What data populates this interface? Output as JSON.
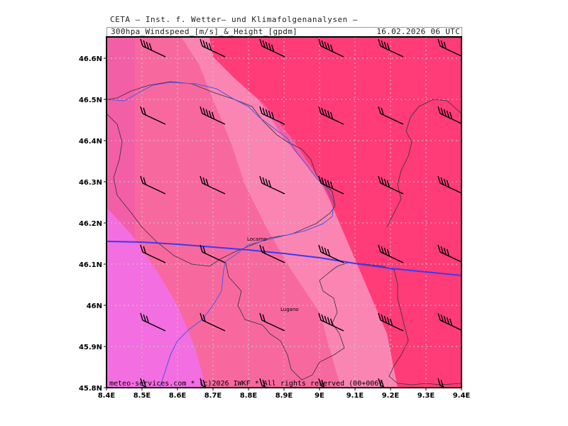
{
  "header": {
    "title": "CETA — Inst. f. Wetter— und Klimafolgenanalysen —",
    "subtitle": "300hpa_Windspeed_[m/s]_&_Height_[gpdm]",
    "datetime": "16.02.2026 06 UTC"
  },
  "axes": {
    "x_ticks": [
      "8.4E",
      "8.5E",
      "8.6E",
      "8.7E",
      "8.8E",
      "8.9E",
      "9E",
      "9.1E",
      "9.2E",
      "9.3E",
      "9.4E"
    ],
    "y_ticks": [
      "46.6N",
      "46.5N",
      "46.4N",
      "46.3N",
      "46.2N",
      "46.1N",
      "46N",
      "45.9N",
      "45.8N"
    ],
    "lon_range": [
      8.4,
      9.4
    ],
    "lat_range": [
      45.8,
      46.65
    ],
    "grid": "dotted"
  },
  "cities": [
    {
      "name": "Locarno",
      "lon": 8.8,
      "lat": 46.16
    },
    {
      "name": "Lugano",
      "lon": 8.95,
      "lat": 45.99
    }
  ],
  "colors": {
    "shade_light": "#f25fa6",
    "shade_mid": "#f7699e",
    "shade_pale": "#fa85b3",
    "shade_deep": "#ff3c78",
    "shade_violet": "#f36ee0",
    "height_contour": "#3a3af5",
    "lake_outline": "#4f55e8",
    "border": "#333333"
  },
  "footer": {
    "credit": "meteo-services.com * (c)2026 IWKF * All rights reserved (00+006)"
  }
}
